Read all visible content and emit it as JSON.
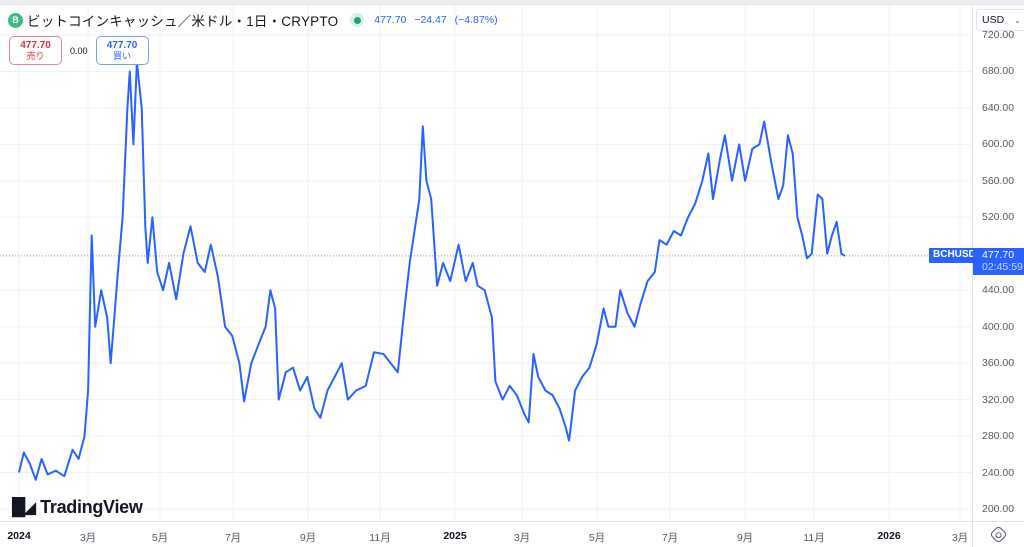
{
  "header": {
    "coin_icon_letter": "B",
    "title": "ビットコインキャッシュ／米ドル・1日・CRYPTO",
    "last_price": "477.70",
    "change": "−24.47",
    "change_pct": "(−4.87%)"
  },
  "trade": {
    "sell_price": "477.70",
    "sell_label": "売り",
    "spread": "0.00",
    "buy_price": "477.70",
    "buy_label": "買い"
  },
  "scale": {
    "currency": "USD",
    "symbol_tag": "BCHUSD",
    "price_tag": "477.70",
    "countdown": "02:45:59"
  },
  "branding": {
    "logo_mark": "17",
    "logo_text": "TradingView"
  },
  "colors": {
    "line": "#2962ff",
    "sell": "#e0323f",
    "buy": "#2962ff",
    "live_dot": "#22a07a"
  },
  "chart_data": {
    "type": "line",
    "title": "ビットコインキャッシュ／米ドル・1日・CRYPTO",
    "xlabel": "",
    "ylabel": "USD",
    "ylim": [
      190,
      730
    ],
    "grid": true,
    "legend": "none",
    "y_ticks": [
      "720.00",
      "680.00",
      "640.00",
      "600.00",
      "560.00",
      "520.00",
      "440.00",
      "400.00",
      "360.00",
      "320.00",
      "280.00",
      "240.00",
      "200.00"
    ],
    "x_ticks": [
      {
        "label": "2024",
        "bold": true
      },
      {
        "label": "3月",
        "bold": false
      },
      {
        "label": "5月",
        "bold": false
      },
      {
        "label": "7月",
        "bold": false
      },
      {
        "label": "9月",
        "bold": false
      },
      {
        "label": "11月",
        "bold": false
      },
      {
        "label": "2025",
        "bold": true
      },
      {
        "label": "3月",
        "bold": false
      },
      {
        "label": "5月",
        "bold": false
      },
      {
        "label": "7月",
        "bold": false
      },
      {
        "label": "9月",
        "bold": false
      },
      {
        "label": "11月",
        "bold": false
      },
      {
        "label": "2026",
        "bold": true
      },
      {
        "label": "3月",
        "bold": false
      }
    ],
    "current_price": 477.7,
    "series": [
      {
        "name": "BCHUSD",
        "points": [
          [
            "2024-01-01",
            240
          ],
          [
            "2024-01-05",
            262
          ],
          [
            "2024-01-10",
            250
          ],
          [
            "2024-01-15",
            232
          ],
          [
            "2024-01-20",
            255
          ],
          [
            "2024-01-25",
            238
          ],
          [
            "2024-02-01",
            242
          ],
          [
            "2024-02-08",
            236
          ],
          [
            "2024-02-15",
            265
          ],
          [
            "2024-02-20",
            255
          ],
          [
            "2024-02-25",
            280
          ],
          [
            "2024-02-28",
            330
          ],
          [
            "2024-03-02",
            500
          ],
          [
            "2024-03-05",
            400
          ],
          [
            "2024-03-10",
            440
          ],
          [
            "2024-03-15",
            410
          ],
          [
            "2024-03-18",
            360
          ],
          [
            "2024-03-24",
            460
          ],
          [
            "2024-03-28",
            520
          ],
          [
            "2024-04-01",
            640
          ],
          [
            "2024-04-03",
            680
          ],
          [
            "2024-04-06",
            600
          ],
          [
            "2024-04-09",
            690
          ],
          [
            "2024-04-13",
            640
          ],
          [
            "2024-04-16",
            510
          ],
          [
            "2024-04-18",
            470
          ],
          [
            "2024-04-22",
            520
          ],
          [
            "2024-04-26",
            460
          ],
          [
            "2024-05-01",
            440
          ],
          [
            "2024-05-06",
            470
          ],
          [
            "2024-05-12",
            430
          ],
          [
            "2024-05-18",
            480
          ],
          [
            "2024-05-24",
            510
          ],
          [
            "2024-05-30",
            470
          ],
          [
            "2024-06-05",
            460
          ],
          [
            "2024-06-10",
            490
          ],
          [
            "2024-06-16",
            455
          ],
          [
            "2024-06-22",
            400
          ],
          [
            "2024-06-28",
            390
          ],
          [
            "2024-07-04",
            360
          ],
          [
            "2024-07-08",
            318
          ],
          [
            "2024-07-14",
            360
          ],
          [
            "2024-07-20",
            380
          ],
          [
            "2024-07-26",
            400
          ],
          [
            "2024-07-30",
            440
          ],
          [
            "2024-08-03",
            420
          ],
          [
            "2024-08-06",
            320
          ],
          [
            "2024-08-12",
            350
          ],
          [
            "2024-08-18",
            355
          ],
          [
            "2024-08-24",
            330
          ],
          [
            "2024-08-30",
            345
          ],
          [
            "2024-09-05",
            310
          ],
          [
            "2024-09-10",
            300
          ],
          [
            "2024-09-16",
            330
          ],
          [
            "2024-09-22",
            345
          ],
          [
            "2024-09-28",
            360
          ],
          [
            "2024-10-03",
            320
          ],
          [
            "2024-10-10",
            330
          ],
          [
            "2024-10-18",
            335
          ],
          [
            "2024-10-25",
            372
          ],
          [
            "2024-11-02",
            370
          ],
          [
            "2024-11-08",
            360
          ],
          [
            "2024-11-14",
            350
          ],
          [
            "2024-11-20",
            425
          ],
          [
            "2024-11-24",
            470
          ],
          [
            "2024-11-28",
            505
          ],
          [
            "2024-12-02",
            540
          ],
          [
            "2024-12-05",
            620
          ],
          [
            "2024-12-08",
            560
          ],
          [
            "2024-12-12",
            540
          ],
          [
            "2024-12-17",
            445
          ],
          [
            "2024-12-22",
            470
          ],
          [
            "2024-12-28",
            450
          ],
          [
            "2025-01-04",
            490
          ],
          [
            "2025-01-10",
            450
          ],
          [
            "2025-01-16",
            470
          ],
          [
            "2025-01-20",
            445
          ],
          [
            "2025-01-26",
            440
          ],
          [
            "2025-02-01",
            410
          ],
          [
            "2025-02-04",
            340
          ],
          [
            "2025-02-10",
            320
          ],
          [
            "2025-02-16",
            335
          ],
          [
            "2025-02-22",
            325
          ],
          [
            "2025-02-28",
            305
          ],
          [
            "2025-03-04",
            295
          ],
          [
            "2025-03-08",
            370
          ],
          [
            "2025-03-12",
            345
          ],
          [
            "2025-03-18",
            330
          ],
          [
            "2025-03-24",
            325
          ],
          [
            "2025-03-30",
            310
          ],
          [
            "2025-04-04",
            290
          ],
          [
            "2025-04-07",
            275
          ],
          [
            "2025-04-12",
            330
          ],
          [
            "2025-04-18",
            345
          ],
          [
            "2025-04-24",
            355
          ],
          [
            "2025-04-30",
            380
          ],
          [
            "2025-05-06",
            420
          ],
          [
            "2025-05-10",
            400
          ],
          [
            "2025-05-16",
            400
          ],
          [
            "2025-05-20",
            440
          ],
          [
            "2025-05-26",
            415
          ],
          [
            "2025-06-01",
            400
          ],
          [
            "2025-06-06",
            425
          ],
          [
            "2025-06-12",
            450
          ],
          [
            "2025-06-18",
            460
          ],
          [
            "2025-06-22",
            495
          ],
          [
            "2025-06-28",
            490
          ],
          [
            "2025-07-04",
            505
          ],
          [
            "2025-07-10",
            500
          ],
          [
            "2025-07-16",
            520
          ],
          [
            "2025-07-22",
            535
          ],
          [
            "2025-07-28",
            560
          ],
          [
            "2025-08-02",
            590
          ],
          [
            "2025-08-06",
            540
          ],
          [
            "2025-08-12",
            585
          ],
          [
            "2025-08-16",
            610
          ],
          [
            "2025-08-22",
            560
          ],
          [
            "2025-08-28",
            600
          ],
          [
            "2025-09-02",
            560
          ],
          [
            "2025-09-08",
            595
          ],
          [
            "2025-09-14",
            600
          ],
          [
            "2025-09-18",
            625
          ],
          [
            "2025-09-24",
            580
          ],
          [
            "2025-09-30",
            540
          ],
          [
            "2025-10-04",
            555
          ],
          [
            "2025-10-08",
            610
          ],
          [
            "2025-10-12",
            590
          ],
          [
            "2025-10-16",
            520
          ],
          [
            "2025-10-20",
            500
          ],
          [
            "2025-10-24",
            475
          ],
          [
            "2025-10-28",
            480
          ],
          [
            "2025-11-02",
            545
          ],
          [
            "2025-11-06",
            540
          ],
          [
            "2025-11-10",
            480
          ],
          [
            "2025-11-14",
            500
          ],
          [
            "2025-11-18",
            515
          ],
          [
            "2025-11-22",
            480
          ],
          [
            "2025-11-25",
            477.7
          ]
        ]
      }
    ]
  }
}
